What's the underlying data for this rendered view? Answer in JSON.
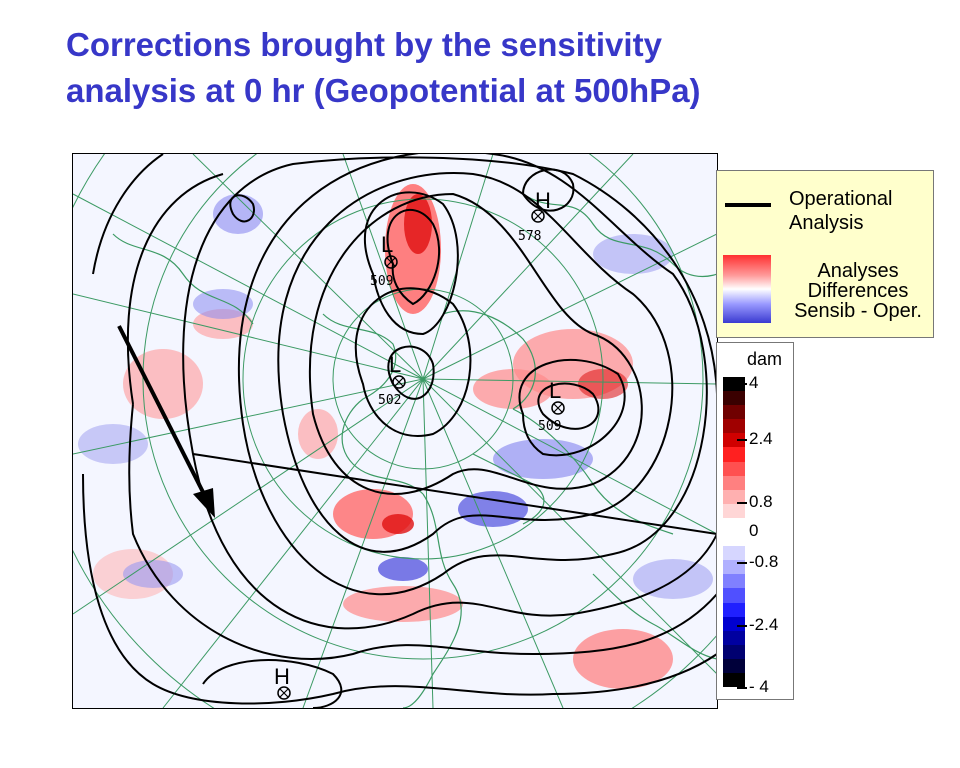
{
  "title": {
    "line1": "Corrections brought by the sensitivity",
    "line2": "analysis at 0 hr (Geopotential at 500hPa)"
  },
  "map": {
    "centers": [
      {
        "letter": "H",
        "value": "578",
        "symbol": "cross-circle"
      },
      {
        "letter": "L",
        "value": "509",
        "symbol": "cross-circle"
      },
      {
        "letter": "L",
        "value": "502",
        "symbol": "cross-circle"
      },
      {
        "letter": "L",
        "value": "509",
        "symbol": "cross-circle"
      },
      {
        "letter": "H",
        "value": "",
        "symbol": "cross-circle"
      }
    ],
    "annotation": "arrow-pointing-southeast",
    "colors": {
      "contour": "#000000",
      "coastline": "#3c9a64",
      "positive": "#ff3a3a",
      "negative": "#4a4ad8"
    }
  },
  "legend": {
    "operational_line": "Operational",
    "operational_line2": "Analysis",
    "differences_1": "Analyses",
    "differences_2": "Differences",
    "differences_3": "Sensib - Oper."
  },
  "scale": {
    "unit": "dam",
    "ticks": [
      "4",
      "2.4",
      "0.8",
      "0",
      "-0.8",
      "-2.4",
      "- 4"
    ],
    "colors": [
      "#000000",
      "#3a0000",
      "#700000",
      "#a00000",
      "#d00000",
      "#ff2020",
      "#ff5050",
      "#ff8080",
      "#ffb0b0",
      "#ffd6d6",
      "#ffffff",
      "#ffffff",
      "#d6d6ff",
      "#b0b0ff",
      "#8080ff",
      "#5050ff",
      "#2020ff",
      "#0000d0",
      "#0000a0",
      "#000070",
      "#00003a",
      "#000000"
    ]
  }
}
